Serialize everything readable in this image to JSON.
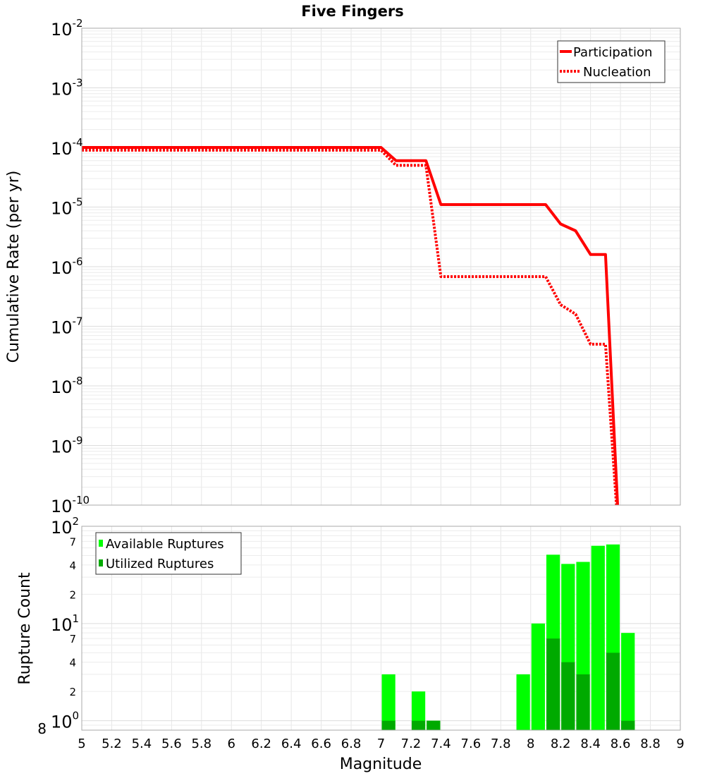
{
  "chart_data": [
    {
      "type": "line",
      "title": "Five Fingers",
      "xlabel": "Magnitude",
      "ylabel": "Cumulative Rate (per yr)",
      "xlim": [
        5,
        9
      ],
      "ylim": [
        1e-10,
        0.01
      ],
      "yscale": "log",
      "grid": true,
      "legend_position": "top-right",
      "x_ticks": [
        "5",
        "5.2",
        "5.4",
        "5.6",
        "5.8",
        "6",
        "6.2",
        "6.4",
        "6.6",
        "6.8",
        "7",
        "7.2",
        "7.4",
        "7.6",
        "7.8",
        "8",
        "8.2",
        "8.4",
        "8.6",
        "8.8",
        "9"
      ],
      "y_tick_exponents": [
        "-2",
        "-3",
        "-4",
        "-5",
        "-6",
        "-7",
        "-8",
        "-9",
        "-10"
      ],
      "y_tick_base": "10",
      "series": [
        {
          "name": "Participation",
          "style": "solid",
          "color": "#ff0000",
          "x": [
            5.0,
            7.0,
            7.1,
            7.3,
            7.4,
            8.1,
            8.2,
            8.3,
            8.4,
            8.5,
            8.6
          ],
          "y": [
            0.0001,
            0.0001,
            6e-05,
            6e-05,
            1.1e-05,
            1.1e-05,
            5.2e-06,
            4e-06,
            1.6e-06,
            1.6e-06,
            1e-11
          ]
        },
        {
          "name": "Nucleation",
          "style": "dotted",
          "color": "#ff0000",
          "x": [
            5.0,
            7.0,
            7.1,
            7.3,
            7.4,
            8.1,
            8.2,
            8.3,
            8.4,
            8.5,
            8.6
          ],
          "y": [
            9e-05,
            9e-05,
            5e-05,
            5e-05,
            6.8e-07,
            6.8e-07,
            2.3e-07,
            1.6e-07,
            5e-08,
            5e-08,
            1e-11
          ]
        }
      ]
    },
    {
      "type": "bar",
      "xlabel": "Magnitude",
      "ylabel": "Rupture Count",
      "xlim": [
        5,
        9
      ],
      "ylim": [
        0.8,
        100
      ],
      "yscale": "log",
      "grid": true,
      "legend_position": "top-left",
      "bin_width": 0.1,
      "y_tick_exponents": [
        "2",
        "1",
        "0"
      ],
      "y_tick_base": "10",
      "y_minor_labels": [
        "7",
        "4",
        "2"
      ],
      "y_bottom_label": "8",
      "categories": [
        7.05,
        7.25,
        7.35,
        7.95,
        8.05,
        8.15,
        8.25,
        8.35,
        8.45,
        8.55,
        8.65
      ],
      "series": [
        {
          "name": "Available Ruptures",
          "color": "#00ff00",
          "values": [
            3,
            2,
            1,
            3,
            10,
            51,
            41,
            43,
            63,
            65,
            8
          ]
        },
        {
          "name": "Utilized Ruptures",
          "color": "#00aa00",
          "values": [
            1,
            1,
            1,
            0,
            0,
            7,
            4,
            3,
            0,
            5,
            1
          ]
        }
      ]
    }
  ]
}
